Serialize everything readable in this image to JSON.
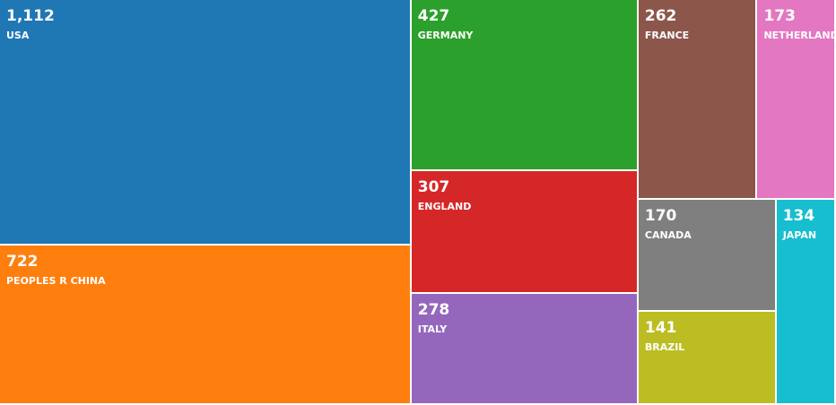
{
  "chart_data": {
    "type": "treemap",
    "title": "",
    "items": [
      {
        "name": "USA",
        "value": 1112,
        "value_label": "1,112",
        "color": "#1f77b4"
      },
      {
        "name": "PEOPLES R CHINA",
        "value": 722,
        "value_label": "722",
        "color": "#ff7f0e"
      },
      {
        "name": "GERMANY",
        "value": 427,
        "value_label": "427",
        "color": "#2ca02c"
      },
      {
        "name": "ENGLAND",
        "value": 307,
        "value_label": "307",
        "color": "#d62728"
      },
      {
        "name": "ITALY",
        "value": 278,
        "value_label": "278",
        "color": "#9467bd"
      },
      {
        "name": "FRANCE",
        "value": 262,
        "value_label": "262",
        "color": "#8c564b"
      },
      {
        "name": "NETHERLANDS",
        "value": 173,
        "value_label": "173",
        "color": "#e377c2"
      },
      {
        "name": "CANADA",
        "value": 170,
        "value_label": "170",
        "color": "#7f7f7f"
      },
      {
        "name": "BRAZIL",
        "value": 141,
        "value_label": "141",
        "color": "#bcbd22"
      },
      {
        "name": "JAPAN",
        "value": 134,
        "value_label": "134",
        "color": "#17becf"
      }
    ]
  }
}
